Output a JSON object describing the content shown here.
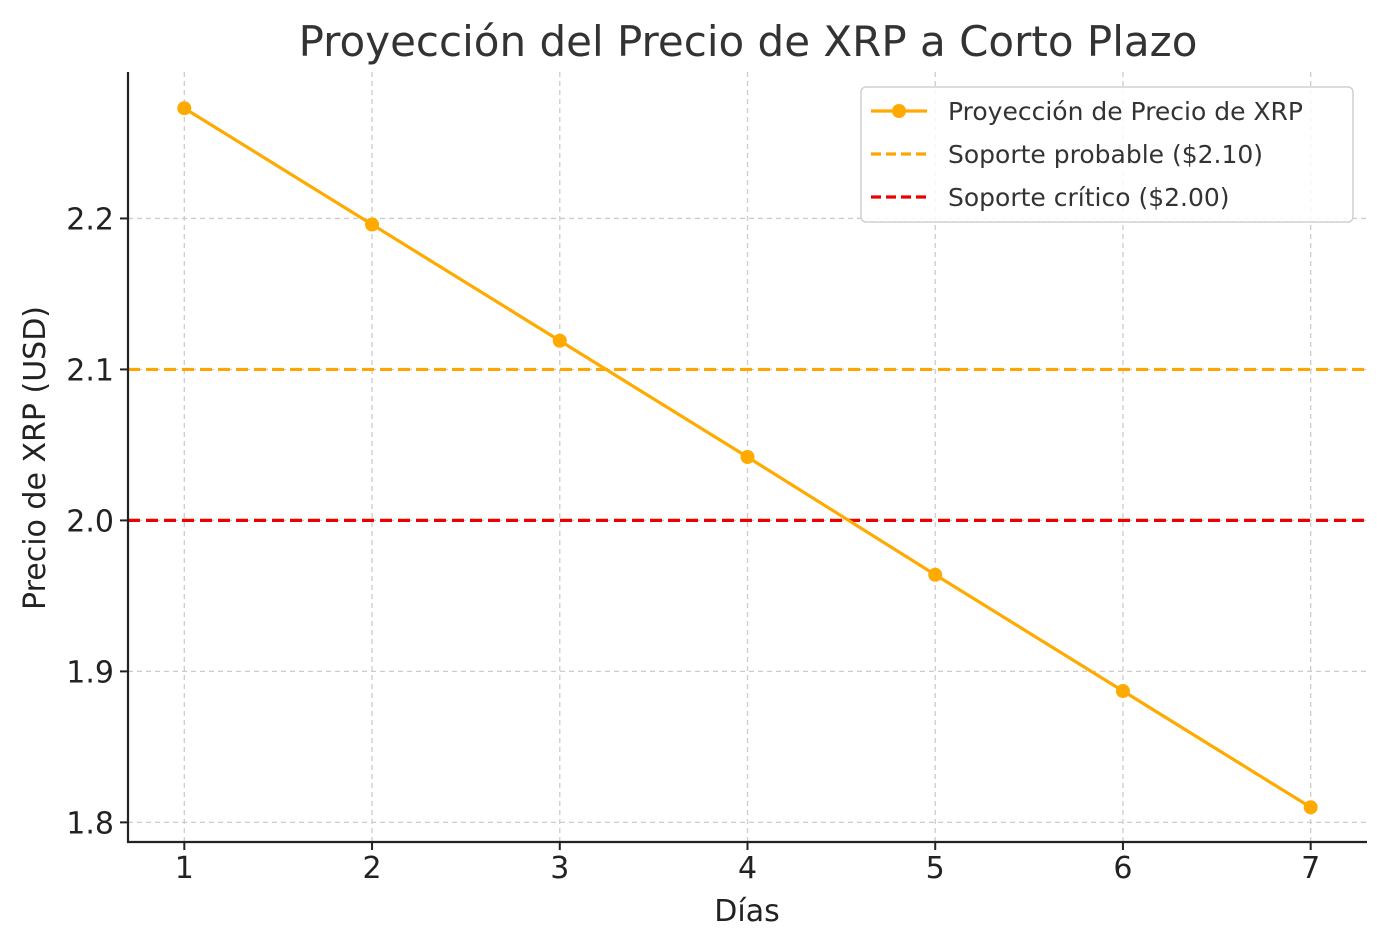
{
  "chart_data": {
    "type": "line",
    "title": "Proyección del Precio de XRP a Corto Plazo",
    "xlabel": "Días",
    "ylabel": "Precio de XRP (USD)",
    "x": [
      1,
      2,
      3,
      4,
      5,
      6,
      7
    ],
    "xticks": [
      "1",
      "2",
      "3",
      "4",
      "5",
      "6",
      "7"
    ],
    "xlim": [
      0.7,
      7.3
    ],
    "ylim": [
      1.787,
      2.297
    ],
    "yticks": [
      "1.8",
      "1.9",
      "2.0",
      "2.1",
      "2.2"
    ],
    "ytick_values": [
      1.8,
      1.9,
      2.0,
      2.1,
      2.2
    ],
    "grid": true,
    "legend_position": "top-right",
    "series": [
      {
        "name": "Proyección de Precio de XRP",
        "values": [
          2.273,
          2.196,
          2.119,
          2.042,
          1.964,
          1.887,
          1.81
        ],
        "color": "#FFAA00",
        "style": "solid-with-markers"
      }
    ],
    "hlines": [
      {
        "name": "Soporte probable ($2.10)",
        "y": 2.1,
        "color": "#FFA500",
        "style": "dashed"
      },
      {
        "name": "Soporte crítico ($2.00)",
        "y": 2.0,
        "color": "#EE0000",
        "style": "dashed"
      }
    ]
  }
}
